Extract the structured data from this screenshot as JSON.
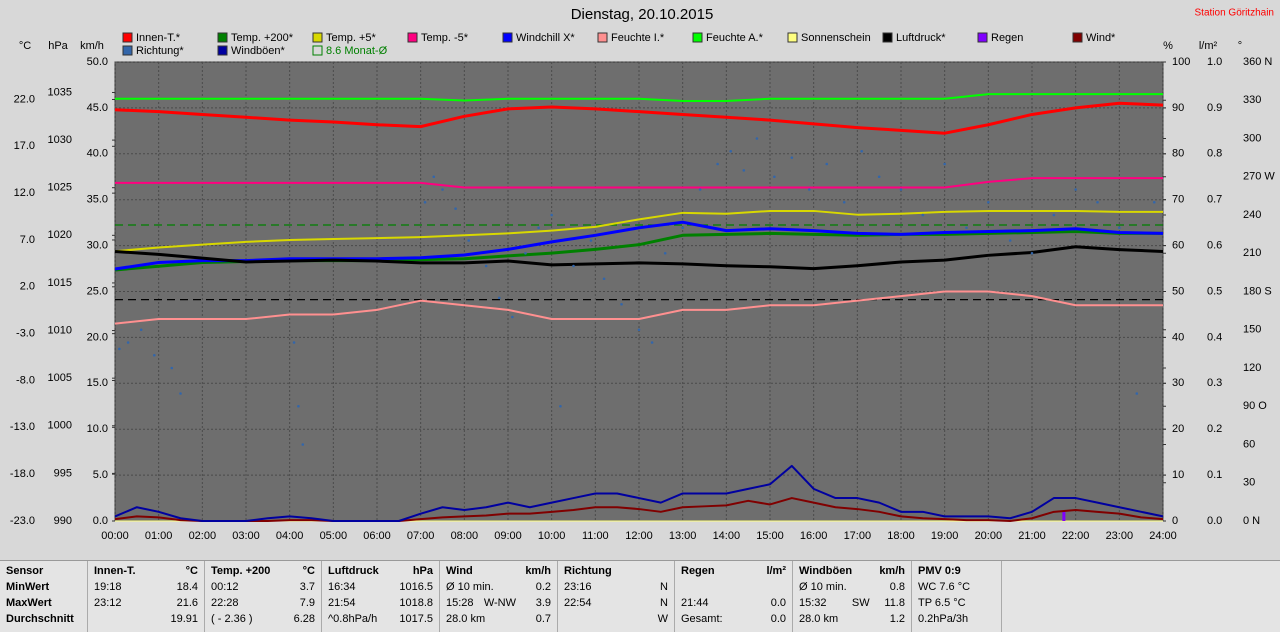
{
  "chart_data": {
    "type": "line",
    "title": "Dienstag, 20.10.2015",
    "annotation": "Station Göritzhain",
    "xlim": [
      0,
      24
    ],
    "xticks": [
      {
        "value": 0,
        "label": "00:00"
      },
      {
        "value": 1,
        "label": "01:00"
      },
      {
        "value": 2,
        "label": "02:00"
      },
      {
        "value": 3,
        "label": "03:00"
      },
      {
        "value": 4,
        "label": "04:00"
      },
      {
        "value": 5,
        "label": "05:00"
      },
      {
        "value": 6,
        "label": "06:00"
      },
      {
        "value": 7,
        "label": "07:00"
      },
      {
        "value": 8,
        "label": "08:00"
      },
      {
        "value": 9,
        "label": "09:00"
      },
      {
        "value": 10,
        "label": "10:00"
      },
      {
        "value": 11,
        "label": "11:00"
      },
      {
        "value": 12,
        "label": "12:00"
      },
      {
        "value": 13,
        "label": "13:00"
      },
      {
        "value": 14,
        "label": "14:00"
      },
      {
        "value": 15,
        "label": "15:00"
      },
      {
        "value": 16,
        "label": "16:00"
      },
      {
        "value": 17,
        "label": "17:00"
      },
      {
        "value": 18,
        "label": "18:00"
      },
      {
        "value": 19,
        "label": "19:00"
      },
      {
        "value": 20,
        "label": "20:00"
      },
      {
        "value": 21,
        "label": "21:00"
      },
      {
        "value": 22,
        "label": "22:00"
      },
      {
        "value": 23,
        "label": "23:00"
      },
      {
        "value": 24,
        "label": "24:00"
      }
    ],
    "grid": true,
    "axes": {
      "c": {
        "label": "°C",
        "side": "left",
        "lim": [
          -23,
          26
        ],
        "ticks": [
          {
            "value": 22,
            "label": "22.0"
          },
          {
            "value": 17,
            "label": "17.0"
          },
          {
            "value": 12,
            "label": "12.0"
          },
          {
            "value": 7,
            "label": "7.0"
          },
          {
            "value": 2,
            "label": "2.0"
          },
          {
            "value": -3,
            "label": "-3.0"
          },
          {
            "value": -8,
            "label": "-8.0"
          },
          {
            "value": -13,
            "label": "-13.0"
          },
          {
            "value": -18,
            "label": "-18.0"
          },
          {
            "value": -23,
            "label": "-23.0"
          }
        ]
      },
      "hpa": {
        "label": "hPa",
        "side": "left",
        "lim": [
          990,
          1038.2
        ],
        "ticks": [
          1035,
          1030,
          1025,
          1020,
          1015,
          1010,
          1005,
          1000,
          995,
          990
        ]
      },
      "kmh": {
        "label": "km/h",
        "side": "left",
        "lim": [
          0,
          50
        ],
        "ticks": [
          {
            "value": 50,
            "label": "50.0"
          },
          {
            "value": 45,
            "label": "45.0"
          },
          {
            "value": 40,
            "label": "40.0"
          },
          {
            "value": 35,
            "label": "35.0"
          },
          {
            "value": 30,
            "label": "30.0"
          },
          {
            "value": 25,
            "label": "25.0"
          },
          {
            "value": 20,
            "label": "20.0"
          },
          {
            "value": 15,
            "label": "15.0"
          },
          {
            "value": 10,
            "label": "10.0"
          },
          {
            "value": 5,
            "label": "5.0"
          },
          {
            "value": 0,
            "label": "0.0"
          }
        ]
      },
      "pct": {
        "label": "%",
        "side": "right",
        "lim": [
          0,
          100
        ],
        "ticks": [
          100,
          90,
          80,
          70,
          60,
          50,
          40,
          30,
          20,
          10,
          0
        ]
      },
      "rain": {
        "label": "l/m²",
        "side": "right",
        "lim": [
          0,
          1
        ],
        "ticks": [
          {
            "value": 1,
            "label": "1.0"
          },
          {
            "value": 0.9,
            "label": "0.9"
          },
          {
            "value": 0.8,
            "label": "0.8"
          },
          {
            "value": 0.7,
            "label": "0.7"
          },
          {
            "value": 0.6,
            "label": "0.6"
          },
          {
            "value": 0.5,
            "label": "0.5"
          },
          {
            "value": 0.4,
            "label": "0.4"
          },
          {
            "value": 0.3,
            "label": "0.3"
          },
          {
            "value": 0.2,
            "label": "0.2"
          },
          {
            "value": 0.1,
            "label": "0.1"
          },
          {
            "value": 0,
            "label": "0.0"
          }
        ]
      },
      "deg": {
        "label": "°",
        "side": "right",
        "lim": [
          0,
          360
        ],
        "ticks": [
          {
            "value": 360,
            "label": "360 N"
          },
          330,
          300,
          {
            "value": 270,
            "label": "270 W"
          },
          240,
          210,
          {
            "value": 180,
            "label": "180 S"
          },
          150,
          120,
          {
            "value": 90,
            "label": "90 O"
          },
          60,
          30,
          {
            "value": 0,
            "label": "0 N"
          }
        ]
      }
    },
    "x": [
      0,
      1,
      2,
      3,
      4,
      5,
      6,
      7,
      8,
      9,
      10,
      11,
      12,
      13,
      14,
      15,
      16,
      17,
      18,
      19,
      20,
      21,
      22,
      23,
      24
    ],
    "series": [
      {
        "name": "Innen-T.*",
        "color": "#ff0000",
        "axis": "c",
        "width": 3,
        "values": [
          20.9,
          20.7,
          20.4,
          20.1,
          19.8,
          19.6,
          19.3,
          19.1,
          20.2,
          21.0,
          21.2,
          21.0,
          20.7,
          20.4,
          20.1,
          19.8,
          19.4,
          19.0,
          18.7,
          18.4,
          19.3,
          20.4,
          21.1,
          21.6,
          21.4
        ]
      },
      {
        "name": "Temp. +200*",
        "color": "#008000",
        "axis": "c",
        "width": 3,
        "values": [
          3.8,
          4.2,
          4.6,
          4.7,
          4.8,
          4.8,
          4.8,
          4.9,
          5.0,
          5.3,
          5.6,
          6.0,
          6.5,
          7.5,
          7.6,
          7.7,
          7.6,
          7.5,
          7.6,
          7.6,
          7.7,
          7.8,
          7.9,
          7.7,
          7.7
        ]
      },
      {
        "name": "Temp. +5*",
        "color": "#d8d800",
        "axis": "c",
        "width": 2,
        "values": [
          5.8,
          6.2,
          6.5,
          6.8,
          7.0,
          7.1,
          7.2,
          7.3,
          7.5,
          7.7,
          8.0,
          8.4,
          9.2,
          9.9,
          9.8,
          10.1,
          10.1,
          9.7,
          9.8,
          10.0,
          10.1,
          10.1,
          10.1,
          10.0,
          10.0
        ]
      },
      {
        "name": "Temp. -5*",
        "color": "#ff0080",
        "axis": "c",
        "width": 2,
        "values": [
          13.1,
          13.1,
          13.1,
          13.1,
          13.1,
          13.1,
          13.1,
          13.1,
          12.6,
          12.6,
          12.6,
          12.6,
          12.6,
          12.6,
          12.6,
          12.6,
          12.6,
          12.6,
          12.6,
          12.6,
          13.2,
          13.6,
          13.6,
          13.6,
          13.6
        ]
      },
      {
        "name": "Windchill X*",
        "color": "#0000ff",
        "axis": "c",
        "width": 3,
        "values": [
          3.9,
          4.6,
          4.8,
          4.8,
          5.0,
          5.0,
          5.0,
          5.1,
          5.4,
          6.0,
          6.8,
          7.5,
          8.3,
          8.9,
          8.0,
          8.2,
          8.0,
          7.7,
          7.6,
          7.8,
          7.9,
          8.0,
          8.2,
          7.8,
          7.7
        ]
      },
      {
        "name": "Feuchte I.*",
        "color": "#ff9090",
        "axis": "pct",
        "width": 2,
        "values": [
          43,
          44,
          44,
          44,
          45,
          45,
          46,
          48,
          47,
          46,
          44,
          44,
          44,
          46,
          46,
          47,
          47,
          48,
          49,
          50,
          50,
          49,
          47,
          47,
          47
        ]
      },
      {
        "name": "Feuchte A.*",
        "color": "#00ff00",
        "axis": "pct",
        "width": 2,
        "values": [
          92,
          92,
          92,
          92,
          92,
          92,
          92,
          92,
          91.6,
          92,
          92,
          92,
          92,
          91.5,
          91.5,
          92,
          92,
          92,
          92,
          92,
          93,
          93,
          93,
          93,
          93
        ]
      },
      {
        "name": "Sonnenschein",
        "color": "#ffff80",
        "axis": "kmh",
        "width": 1,
        "values": [
          0,
          0,
          0,
          0,
          0,
          0,
          0,
          0,
          0,
          0,
          0,
          0,
          0,
          0,
          0,
          0,
          0,
          0,
          0,
          0,
          0,
          0,
          0,
          0,
          0
        ]
      },
      {
        "name": "Luftdruck*",
        "color": "#000000",
        "axis": "hpa",
        "width": 3,
        "values": [
          1018.3,
          1018.0,
          1017.6,
          1017.2,
          1017.3,
          1017.4,
          1017.3,
          1017.1,
          1017.1,
          1017.3,
          1016.9,
          1017.0,
          1017.1,
          1017.0,
          1016.8,
          1016.7,
          1016.5,
          1016.8,
          1017.2,
          1017.4,
          1017.9,
          1018.2,
          1018.8,
          1018.5,
          1018.3
        ]
      },
      {
        "name": "Regen",
        "color": "#8000ff",
        "axis": "rain",
        "type": "bar",
        "x": [
          21.73
        ],
        "values": [
          0.02
        ]
      },
      {
        "name": "Wind*",
        "color": "#800000",
        "axis": "kmh",
        "width": 2,
        "x": [
          0,
          0.5,
          1,
          1.5,
          2,
          2.5,
          3,
          3.5,
          4,
          4.5,
          5,
          5.5,
          6,
          6.5,
          7,
          7.5,
          8,
          8.5,
          9,
          9.5,
          10,
          10.5,
          11,
          11.5,
          12,
          12.5,
          13,
          13.5,
          14,
          14.5,
          15,
          15.5,
          16,
          16.5,
          17,
          17.5,
          18,
          18.5,
          19,
          19.5,
          20,
          20.5,
          21,
          21.5,
          22,
          22.5,
          23,
          23.5,
          24
        ],
        "values": [
          0.2,
          0.5,
          0.4,
          0.1,
          0,
          0,
          0,
          0,
          0.1,
          0.1,
          0,
          0,
          0,
          0,
          0.2,
          0.4,
          0.5,
          0.6,
          0.8,
          0.8,
          1.0,
          1.2,
          1.5,
          1.5,
          1.3,
          1.0,
          1.5,
          1.6,
          1.7,
          2.2,
          1.8,
          2.5,
          2.0,
          1.5,
          1.3,
          1.0,
          0.5,
          0.3,
          0.2,
          0.1,
          0.1,
          0,
          0.3,
          1.0,
          1.2,
          1.0,
          0.8,
          0.4,
          0.2
        ]
      },
      {
        "name": "Richtung*",
        "color": "#3366aa",
        "axis": "deg",
        "type": "scatter",
        "x": [
          0.1,
          0.3,
          0.6,
          0.9,
          1.3,
          1.5,
          4.1,
          4.2,
          4.3,
          7.1,
          7.3,
          7.5,
          7.8,
          8.1,
          8.5,
          8.8,
          9.1,
          9.4,
          9.7,
          10.0,
          10.2,
          10.5,
          10.9,
          11.2,
          11.6,
          12.0,
          12.3,
          12.6,
          13.0,
          13.4,
          13.8,
          14.1,
          14.4,
          14.7,
          15.1,
          15.5,
          15.9,
          16.3,
          16.7,
          17.1,
          17.5,
          18.0,
          18.5,
          19.0,
          19.5,
          20.0,
          20.5,
          21.0,
          21.5,
          22.0,
          22.5,
          23.0,
          23.4,
          23.8
        ],
        "values": [
          135,
          140,
          150,
          130,
          120,
          100,
          140,
          90,
          60,
          250,
          270,
          260,
          245,
          220,
          200,
          175,
          160,
          210,
          230,
          240,
          90,
          200,
          220,
          190,
          170,
          150,
          140,
          210,
          230,
          260,
          280,
          290,
          275,
          300,
          270,
          285,
          260,
          280,
          250,
          290,
          270,
          260,
          240,
          280,
          230,
          250,
          220,
          210,
          240,
          260,
          250,
          230,
          100,
          250
        ]
      },
      {
        "name": "Windböen*",
        "color": "#0000a0",
        "axis": "kmh",
        "width": 2,
        "x": [
          0,
          0.5,
          1,
          1.5,
          2,
          2.5,
          3,
          3.5,
          4,
          4.5,
          5,
          5.5,
          6,
          6.5,
          7,
          7.5,
          8,
          8.5,
          9,
          9.5,
          10,
          10.5,
          11,
          11.5,
          12,
          12.5,
          13,
          13.5,
          14,
          14.5,
          15,
          15.5,
          16,
          16.5,
          17,
          17.5,
          18,
          18.5,
          19,
          19.5,
          20,
          20.5,
          21,
          21.5,
          22,
          22.5,
          23,
          23.5,
          24
        ],
        "values": [
          0.5,
          1.5,
          1.0,
          0.3,
          0,
          0,
          0,
          0.3,
          0.5,
          0.3,
          0,
          0,
          0,
          0,
          0.8,
          1.5,
          1.2,
          1.5,
          2.0,
          1.5,
          2.0,
          2.5,
          3.0,
          3.0,
          2.5,
          2.0,
          3.0,
          3.0,
          3.0,
          3.5,
          4.0,
          6.0,
          3.5,
          2.5,
          2.5,
          2.0,
          1.0,
          1.0,
          0.5,
          0.5,
          0.5,
          0.3,
          1.0,
          2.5,
          2.5,
          2.0,
          1.5,
          1.0,
          0.5
        ]
      }
    ],
    "reference_lines": [
      {
        "name": "8.6 Monat-Ø",
        "value": 8.6,
        "axis": "c",
        "color": "#008000"
      },
      {
        "value": 1013.25,
        "axis": "hpa",
        "color": "#000000"
      }
    ]
  },
  "table": {
    "sections": [
      {
        "header": [
          "Sensor"
        ],
        "rows": [
          [
            "MinWert"
          ],
          [
            "MaxWert"
          ],
          [
            "Durchschnitt"
          ]
        ]
      },
      {
        "header": [
          "Innen-T.",
          "°C"
        ],
        "rows": [
          [
            "19:18",
            "18.4"
          ],
          [
            "23:12",
            "21.6"
          ],
          [
            null,
            "19.91"
          ]
        ]
      },
      {
        "header": [
          "Temp. +200",
          "°C"
        ],
        "rows": [
          [
            "00:12",
            "3.7"
          ],
          [
            "22:28",
            "7.9"
          ],
          [
            "( - 2.36 )",
            "6.28"
          ]
        ]
      },
      {
        "header": [
          "Luftdruck",
          "hPa"
        ],
        "rows": [
          [
            "16:34",
            "1016.5"
          ],
          [
            "21:54",
            "1018.8"
          ],
          [
            "^0.8hPa/h",
            "1017.5"
          ]
        ]
      },
      {
        "header": [
          "Wind",
          "km/h"
        ],
        "rows": [
          [
            "Ø 10 min.",
            null,
            "0.2"
          ],
          [
            "15:28",
            "W-NW",
            "3.9"
          ],
          [
            "28.0 km",
            null,
            "0.7"
          ]
        ]
      },
      {
        "header": [
          "Richtung"
        ],
        "rows": [
          [
            "23:16",
            "N"
          ],
          [
            "22:54",
            "N"
          ],
          [
            null,
            "W"
          ]
        ]
      },
      {
        "header": [
          "Regen",
          "l/m²"
        ],
        "rows": [
          [
            null,
            null
          ],
          [
            "21:44",
            "0.0"
          ],
          [
            "Gesamt:",
            "0.0"
          ]
        ]
      },
      {
        "header": [
          "Windböen",
          "km/h"
        ],
        "rows": [
          [
            "Ø 10 min.",
            null,
            "0.8"
          ],
          [
            "15:32",
            "SW",
            "11.8"
          ],
          [
            "28.0 km",
            null,
            "1.2"
          ]
        ]
      },
      {
        "header": [
          "PMV 0:9"
        ],
        "rows": [
          [
            "WC 7.6 °C"
          ],
          [
            "TP 6.5 °C"
          ],
          [
            "0.2hPa/3h"
          ]
        ]
      }
    ]
  }
}
